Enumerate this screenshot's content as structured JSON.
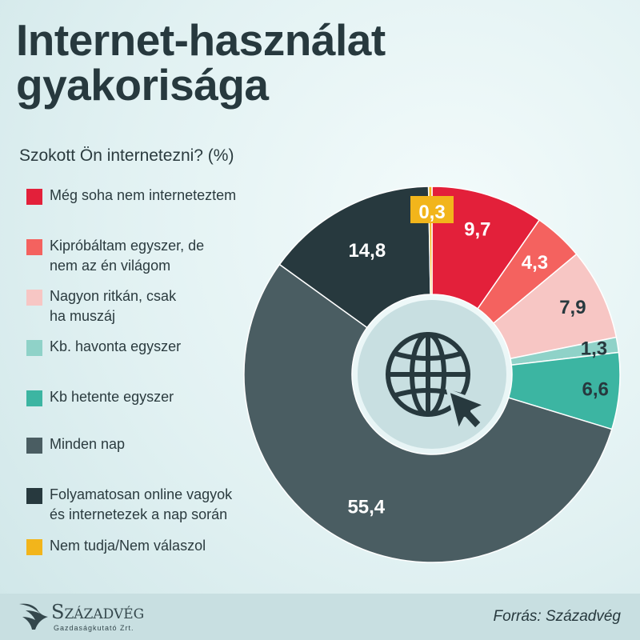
{
  "title": "Internet-használat gyakorisága",
  "subtitle": "Szokott Ön internetezni? (%)",
  "chart_data": {
    "type": "pie",
    "categories": [
      "Még soha nem interneteztem",
      "Kipróbáltam egyszer, de nem az én világom",
      "Nagyon ritkán, csak ha muszáj",
      "Kb. havonta egyszer",
      "Kb hetente egyszer",
      "Minden nap",
      "Folyamatosan online vagyok és internetezek a nap során",
      "Nem tudja/Nem válaszol"
    ],
    "values": [
      9.7,
      4.3,
      7.9,
      1.3,
      6.6,
      55.4,
      14.8,
      0.3
    ],
    "value_labels": [
      "9,7",
      "4,3",
      "7,9",
      "1,3",
      "6,6",
      "55,4",
      "14,8",
      "0,3"
    ],
    "colors": [
      "#e3203a",
      "#f4625f",
      "#f7c6c4",
      "#8fd2c8",
      "#3cb5a2",
      "#4a5d62",
      "#27393e",
      "#f2b51b"
    ],
    "chart_subtype": "donut",
    "start": "12 o'clock",
    "direction": "clockwise",
    "legend_position": "left"
  },
  "legend": [
    {
      "label": "Még soha nem interneteztem",
      "color": "#e3203a"
    },
    {
      "label": "Kipróbáltam egyszer, de\nnem az én világom",
      "color": "#f4625f"
    },
    {
      "label": "Nagyon ritkán, csak\nha muszáj",
      "color": "#f7c6c4"
    },
    {
      "label": "Kb. havonta egyszer",
      "color": "#8fd2c8"
    },
    {
      "label": "Kb hetente egyszer",
      "color": "#3cb5a2"
    },
    {
      "label": "Minden nap",
      "color": "#4a5d62"
    },
    {
      "label": "Folyamatosan online vagyok\nés internetezek a nap során",
      "color": "#27393e"
    },
    {
      "label": "Nem tudja/Nem válaszol",
      "color": "#f2b51b"
    }
  ],
  "center_icon": "globe-cursor-icon",
  "footer": {
    "brand": "Századvég",
    "brand_sub": "Gazdaságkutató Zrt.",
    "source": "Forrás: Századvég",
    "logo_icon": "eagle-logo-icon"
  }
}
